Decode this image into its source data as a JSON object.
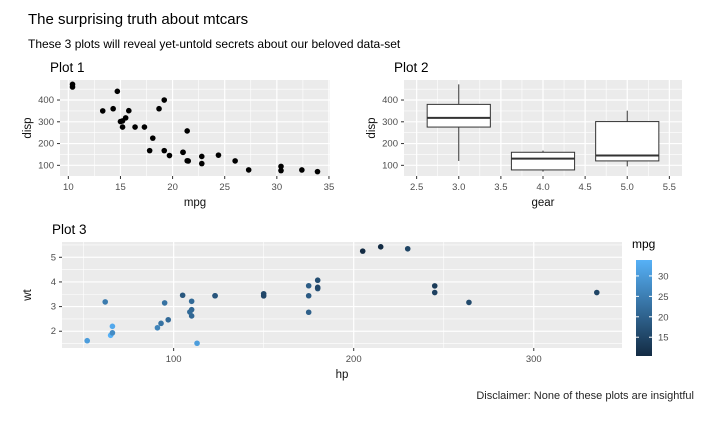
{
  "page": {
    "title": "The surprising truth about mtcars",
    "subtitle": "These 3 plots will reveal yet-untold secrets about our beloved data-set",
    "caption": "Disclaimer: None of these plots are insightful"
  },
  "theme": {
    "panel_bg": "#EBEBEB",
    "grid_major": "#FFFFFF",
    "grid_minor": "#FFFFFF",
    "tick_label_color": "#4D4D4D",
    "axis_title_color": "#111111",
    "point_color": "#000000"
  },
  "chart_data": [
    {
      "id": "plot1",
      "type": "scatter",
      "title": "Plot 1",
      "xlabel": "mpg",
      "ylabel": "disp",
      "xlim": [
        9.2,
        35.1
      ],
      "ylim": [
        51,
        492
      ],
      "xticks": [
        10,
        15,
        20,
        25,
        30,
        35
      ],
      "yticks": [
        100,
        200,
        300,
        400
      ],
      "points": [
        [
          21,
          160
        ],
        [
          21,
          160
        ],
        [
          22.8,
          108
        ],
        [
          21.4,
          258
        ],
        [
          18.7,
          360
        ],
        [
          18.1,
          225
        ],
        [
          14.3,
          360
        ],
        [
          24.4,
          146.7
        ],
        [
          22.8,
          140.8
        ],
        [
          19.2,
          167.6
        ],
        [
          17.8,
          167.6
        ],
        [
          16.4,
          275.8
        ],
        [
          17.3,
          275.8
        ],
        [
          15.2,
          275.8
        ],
        [
          10.4,
          472
        ],
        [
          10.4,
          460
        ],
        [
          14.7,
          440
        ],
        [
          32.4,
          78.7
        ],
        [
          30.4,
          75.7
        ],
        [
          33.9,
          71.1
        ],
        [
          21.5,
          120.1
        ],
        [
          15.5,
          318
        ],
        [
          15.2,
          304
        ],
        [
          13.3,
          350
        ],
        [
          19.2,
          400
        ],
        [
          27.3,
          79
        ],
        [
          26,
          120.3
        ],
        [
          30.4,
          95.1
        ],
        [
          15.8,
          351
        ],
        [
          19.7,
          145
        ],
        [
          15,
          301
        ],
        [
          21.4,
          121
        ]
      ]
    },
    {
      "id": "plot2",
      "type": "boxplot",
      "title": "Plot 2",
      "xlabel": "gear",
      "ylabel": "disp",
      "xlim": [
        2.35,
        5.65
      ],
      "ylim": [
        51,
        492
      ],
      "xticks": [
        2.5,
        3.0,
        3.5,
        4.0,
        4.5,
        5.0,
        5.5
      ],
      "xtick_labels": [
        "2.5",
        "3.0",
        "3.5",
        "4.0",
        "4.5",
        "5.0",
        "5.5"
      ],
      "yticks": [
        100,
        200,
        300,
        400
      ],
      "box_width": 0.75,
      "boxes": [
        {
          "x": 3,
          "min": 120.1,
          "q1": 275.8,
          "median": 318,
          "q3": 380,
          "max": 472
        },
        {
          "x": 4,
          "min": 71.1,
          "q1": 78.9,
          "median": 130.9,
          "q3": 160,
          "max": 167.6
        },
        {
          "x": 5,
          "min": 95.1,
          "q1": 120.3,
          "median": 145,
          "q3": 301,
          "max": 351
        }
      ]
    },
    {
      "id": "plot3",
      "type": "scatter",
      "title": "Plot 3",
      "xlabel": "hp",
      "ylabel": "wt",
      "xlim": [
        38,
        349
      ],
      "ylim": [
        1.32,
        5.62
      ],
      "xticks": [
        100,
        200,
        300
      ],
      "yticks": [
        2,
        3,
        4,
        5
      ],
      "color_by": "mpg",
      "legend": {
        "title": "mpg",
        "min": 10.4,
        "max": 33.9,
        "ticks": [
          15,
          20,
          25,
          30
        ],
        "low": "#132B43",
        "high": "#56B1F7"
      },
      "points": [
        [
          110,
          2.62,
          21
        ],
        [
          110,
          2.875,
          21
        ],
        [
          93,
          2.32,
          22.8
        ],
        [
          110,
          3.215,
          21.4
        ],
        [
          175,
          3.44,
          18.7
        ],
        [
          105,
          3.46,
          18.1
        ],
        [
          245,
          3.57,
          14.3
        ],
        [
          62,
          3.19,
          24.4
        ],
        [
          95,
          3.15,
          22.8
        ],
        [
          123,
          3.44,
          19.2
        ],
        [
          123,
          3.44,
          17.8
        ],
        [
          180,
          4.07,
          16.4
        ],
        [
          180,
          3.73,
          17.3
        ],
        [
          180,
          3.78,
          15.2
        ],
        [
          205,
          5.25,
          10.4
        ],
        [
          215,
          5.424,
          10.4
        ],
        [
          230,
          5.345,
          14.7
        ],
        [
          66,
          2.2,
          32.4
        ],
        [
          52,
          1.615,
          30.4
        ],
        [
          65,
          1.835,
          33.9
        ],
        [
          97,
          2.465,
          21.5
        ],
        [
          150,
          3.52,
          15.5
        ],
        [
          150,
          3.435,
          15.2
        ],
        [
          245,
          3.84,
          13.3
        ],
        [
          175,
          3.845,
          19.2
        ],
        [
          66,
          1.935,
          27.3
        ],
        [
          91,
          2.14,
          26
        ],
        [
          113,
          1.513,
          30.4
        ],
        [
          264,
          3.17,
          15.8
        ],
        [
          175,
          2.77,
          19.7
        ],
        [
          335,
          3.57,
          15
        ],
        [
          109,
          2.78,
          21.4
        ]
      ]
    }
  ]
}
